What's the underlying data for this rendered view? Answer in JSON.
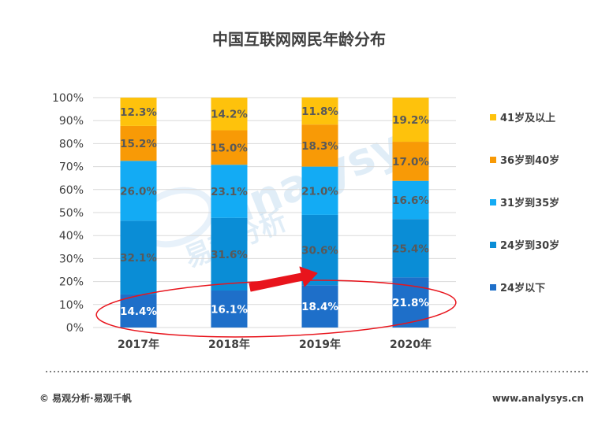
{
  "chart_data": {
    "type": "bar",
    "stacked": true,
    "title": "中国互联网网民年龄分布",
    "categories": [
      "2017年",
      "2018年",
      "2019年",
      "2020年"
    ],
    "series": [
      {
        "name": "24岁以下",
        "color": "#1e6fc9",
        "values": [
          14.4,
          16.1,
          18.4,
          21.8
        ]
      },
      {
        "name": "24岁到30岁",
        "color": "#0a8dd6",
        "values": [
          32.1,
          31.6,
          30.6,
          25.4
        ]
      },
      {
        "name": "31岁到35岁",
        "color": "#13abf4",
        "values": [
          26.0,
          23.1,
          21.0,
          16.6
        ]
      },
      {
        "name": "36岁到40岁",
        "color": "#f89a06",
        "values": [
          15.2,
          15.0,
          18.3,
          17.0
        ]
      },
      {
        "name": "41岁及以上",
        "color": "#fec20c",
        "values": [
          12.3,
          14.2,
          11.8,
          19.2
        ]
      }
    ],
    "yticks": [
      "0%",
      "10%",
      "20%",
      "30%",
      "40%",
      "50%",
      "60%",
      "70%",
      "80%",
      "90%",
      "100%"
    ],
    "ylim": [
      0,
      100
    ],
    "grid": true,
    "legend_position": "right"
  },
  "footer": {
    "left": "© 易观分析·易观千帆",
    "right": "www.analysys.cn"
  },
  "watermark": {
    "text1": "analysys",
    "text2": "易观分析"
  }
}
